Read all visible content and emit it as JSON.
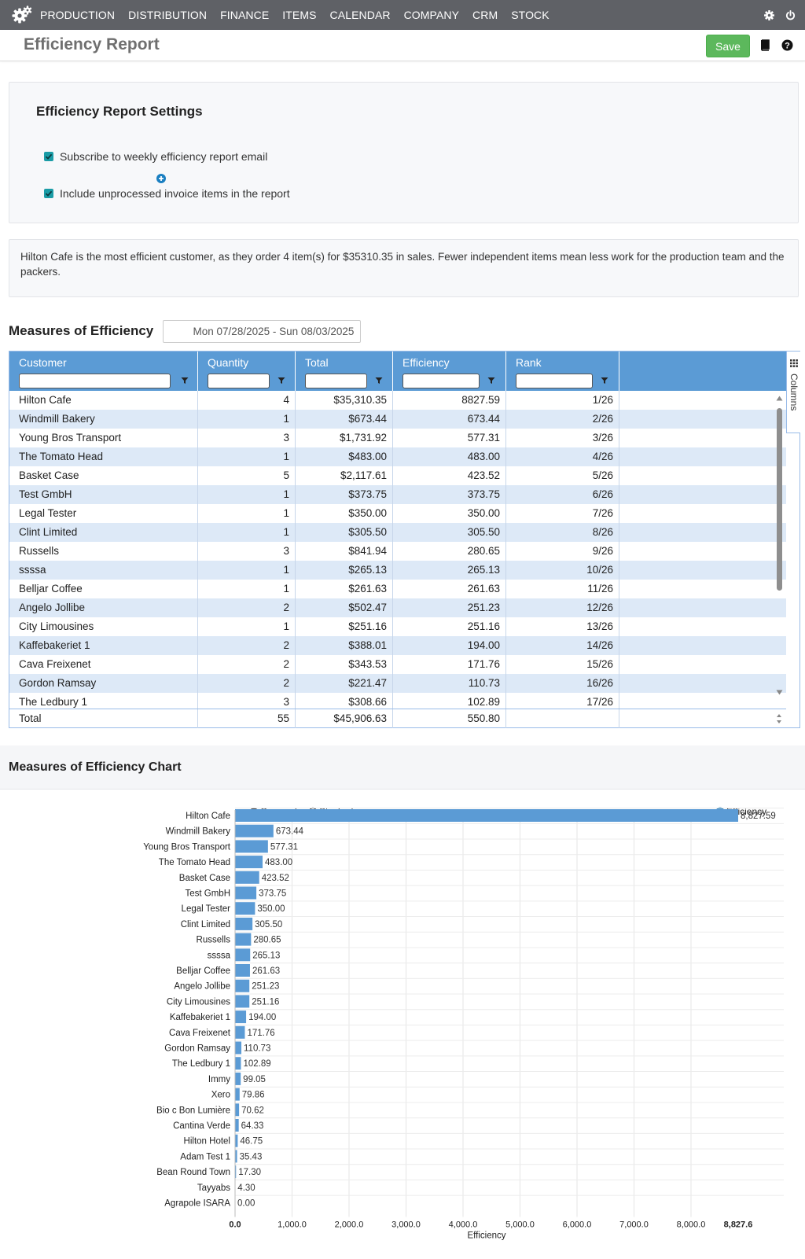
{
  "nav": {
    "items": [
      "PRODUCTION",
      "DISTRIBUTION",
      "FINANCE",
      "ITEMS",
      "CALENDAR",
      "COMPANY",
      "CRM",
      "STOCK"
    ],
    "icons": [
      "gears-logo-icon",
      "gear-icon",
      "power-icon"
    ]
  },
  "header": {
    "title": "Efficiency Report",
    "save_label": "Save",
    "icons": [
      "book-icon",
      "help-icon"
    ]
  },
  "settings": {
    "title": "Efficiency Report Settings",
    "subscribe_label": "Subscribe to weekly efficiency report email",
    "subscribe_checked": true,
    "include_label": "Include unprocessed invoice items in the report",
    "include_checked": true
  },
  "info_text": "Hilton Cafe is the most efficient customer, as they order 4 item(s) for $35310.35 in sales. Fewer independent items mean less work for the production team and the packers.",
  "measures": {
    "title": "Measures of Efficiency",
    "date_range": "Mon 07/28/2025 - Sun 08/03/2025"
  },
  "grid": {
    "columns": [
      "Customer",
      "Quantity",
      "Total",
      "Efficiency",
      "Rank"
    ],
    "columns_tab_label": "Columns",
    "rows": [
      [
        "Hilton Cafe",
        "4",
        "$35,310.35",
        "8827.59",
        "1/26"
      ],
      [
        "Windmill Bakery",
        "1",
        "$673.44",
        "673.44",
        "2/26"
      ],
      [
        "Young Bros Transport",
        "3",
        "$1,731.92",
        "577.31",
        "3/26"
      ],
      [
        "The Tomato Head",
        "1",
        "$483.00",
        "483.00",
        "4/26"
      ],
      [
        "Basket Case",
        "5",
        "$2,117.61",
        "423.52",
        "5/26"
      ],
      [
        "Test GmbH",
        "1",
        "$373.75",
        "373.75",
        "6/26"
      ],
      [
        "Legal Tester",
        "1",
        "$350.00",
        "350.00",
        "7/26"
      ],
      [
        "Clint Limited",
        "1",
        "$305.50",
        "305.50",
        "8/26"
      ],
      [
        "Russells",
        "3",
        "$841.94",
        "280.65",
        "9/26"
      ],
      [
        "ssssa",
        "1",
        "$265.13",
        "265.13",
        "10/26"
      ],
      [
        "Belljar Coffee",
        "1",
        "$261.63",
        "261.63",
        "11/26"
      ],
      [
        "Angelo Jollibe",
        "2",
        "$502.47",
        "251.23",
        "12/26"
      ],
      [
        "City Limousines",
        "1",
        "$251.16",
        "251.16",
        "13/26"
      ],
      [
        "Kaffebakeriet 1",
        "2",
        "$388.01",
        "194.00",
        "14/26"
      ],
      [
        "Cava Freixenet",
        "2",
        "$343.53",
        "171.76",
        "15/26"
      ],
      [
        "Gordon Ramsay",
        "2",
        "$221.47",
        "110.73",
        "16/26"
      ],
      [
        "The Ledbury 1",
        "3",
        "$308.66",
        "102.89",
        "17/26"
      ]
    ],
    "total": [
      "Total",
      "55",
      "$45,906.63",
      "550.80",
      ""
    ]
  },
  "chart_section": {
    "title": "Measures of Efficiency Chart",
    "grouped_label": "Grouped",
    "stacked_label": "Stacked"
  },
  "chart_data": {
    "type": "bar",
    "orientation": "horizontal",
    "categories": [
      "Hilton Cafe",
      "Windmill Bakery",
      "Young Bros Transport",
      "The Tomato Head",
      "Basket Case",
      "Test GmbH",
      "Legal Tester",
      "Clint Limited",
      "Russells",
      "ssssa",
      "Belljar Coffee",
      "Angelo Jollibe",
      "City Limousines",
      "Kaffebakeriet 1",
      "Cava Freixenet",
      "Gordon Ramsay",
      "The Ledbury 1",
      "Immy",
      "Xero",
      "Bio c Bon Lumière",
      "Cantina Verde",
      "Hilton Hotel",
      "Adam Test 1",
      "Bean Round Town",
      "Tayyabs",
      "Agrapole ISARA"
    ],
    "series": [
      {
        "name": "Efficiency",
        "values": [
          8827.59,
          673.44,
          577.31,
          483.0,
          423.52,
          373.75,
          350.0,
          305.5,
          280.65,
          265.13,
          261.63,
          251.23,
          251.16,
          194.0,
          171.76,
          110.73,
          102.89,
          99.05,
          79.86,
          70.62,
          64.33,
          46.75,
          35.43,
          17.3,
          4.3,
          0.0
        ]
      }
    ],
    "xlabel": "Efficiency",
    "xlim": [
      0,
      8827.6
    ],
    "xticks": [
      0,
      1000,
      2000,
      3000,
      4000,
      5000,
      6000,
      7000,
      8000,
      8827.6
    ],
    "xtick_labels": [
      "0.0",
      "1,000.0",
      "2,000.0",
      "3,000.0",
      "4,000.0",
      "5,000.0",
      "6,000.0",
      "7,000.0",
      "8,000.0",
      "8,827.6"
    ],
    "value_labels": [
      "8,827.59",
      "673.44",
      "577.31",
      "483.00",
      "423.52",
      "373.75",
      "350.00",
      "305.50",
      "280.65",
      "265.13",
      "261.63",
      "251.23",
      "251.16",
      "194.00",
      "171.76",
      "110.73",
      "102.89",
      "99.05",
      "79.86",
      "70.62",
      "64.33",
      "46.75",
      "35.43",
      "17.30",
      "4.30",
      "0.00"
    ],
    "grid": true,
    "legend": "top-right",
    "bar_color": "#5b9bd5",
    "legend_dot_color": "#1f77b4"
  }
}
